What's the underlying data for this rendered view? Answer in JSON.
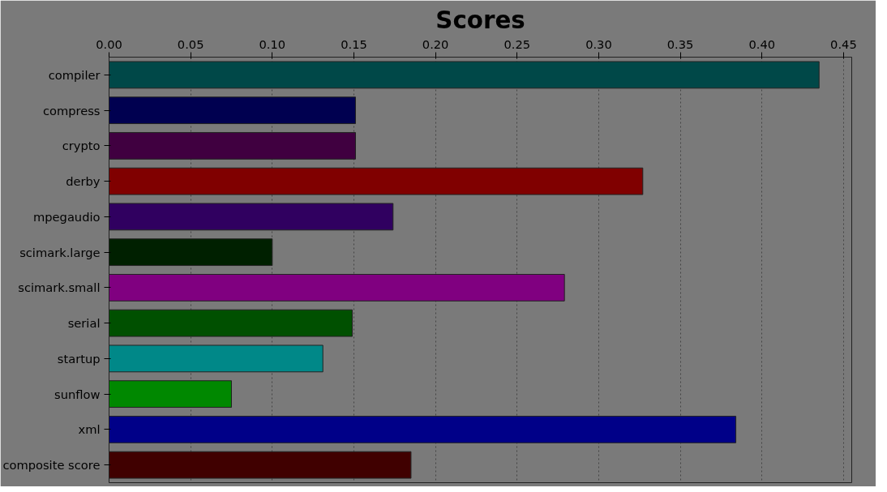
{
  "chart_data": {
    "type": "bar",
    "orientation": "horizontal",
    "title": "Scores",
    "categories": [
      "compiler",
      "compress",
      "crypto",
      "derby",
      "mpegaudio",
      "scimark.large",
      "scimark.small",
      "serial",
      "startup",
      "sunflow",
      "xml",
      "composite score"
    ],
    "values": [
      0.435,
      0.151,
      0.151,
      0.327,
      0.174,
      0.1,
      0.279,
      0.149,
      0.131,
      0.075,
      0.384,
      0.185
    ],
    "colors": [
      "#004848",
      "#000050",
      "#400040",
      "#800000",
      "#300060",
      "#002000",
      "#800080",
      "#005000",
      "#008888",
      "#008800",
      "#000088",
      "#400000"
    ],
    "xlim": [
      0,
      0.455
    ],
    "xticks": [
      {
        "value": 0,
        "label": "0.00"
      },
      0.05,
      {
        "value": 0.1,
        "label": "0.10"
      },
      0.15,
      {
        "value": 0.2,
        "label": "0.20"
      },
      0.25,
      {
        "value": 0.3,
        "label": "0.30"
      },
      0.35,
      {
        "value": 0.4,
        "label": "0.40"
      },
      0.45
    ],
    "grid": "x"
  }
}
